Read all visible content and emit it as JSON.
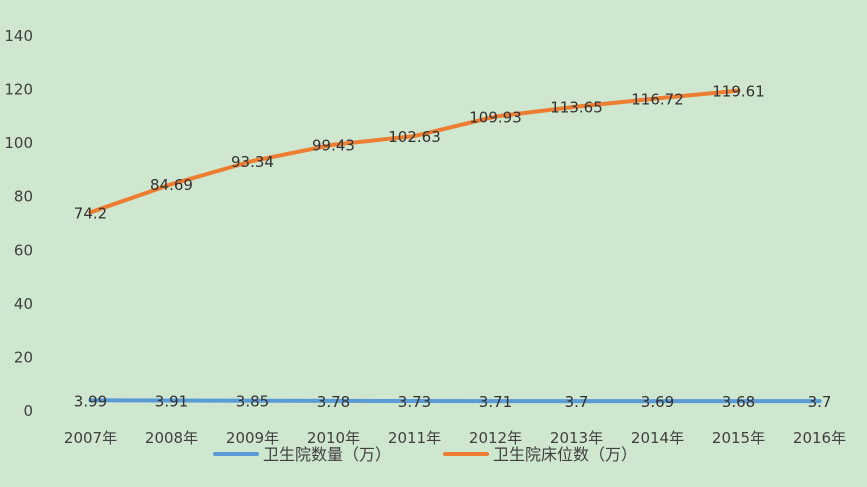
{
  "chart_data": {
    "type": "line",
    "categories": [
      "2007年",
      "2008年",
      "2009年",
      "2010年",
      "2011年",
      "2012年",
      "2013年",
      "2014年",
      "2015年",
      "2016年"
    ],
    "series": [
      {
        "name": "卫生院数量（万）",
        "color": "#5b9bd5",
        "values": [
          3.99,
          3.91,
          3.85,
          3.78,
          3.73,
          3.71,
          3.7,
          3.69,
          3.68,
          3.7
        ],
        "labels": [
          "3.99",
          "3.91",
          "3.85",
          "3.78",
          "3.73",
          "3.71",
          "3.7",
          "3.69",
          "3.68",
          "3.7"
        ]
      },
      {
        "name": "卫生院床位数（万）",
        "color": "#ed7d31",
        "values": [
          74.2,
          84.69,
          93.34,
          99.43,
          102.63,
          109.93,
          113.65,
          116.72,
          119.61,
          null
        ],
        "labels": [
          "74.2",
          "84.69",
          "93.34",
          "99.43",
          "102.63",
          "109.93",
          "113.65",
          "116.72",
          "119.61",
          ""
        ]
      }
    ],
    "ylim": [
      0,
      140
    ],
    "yticks": [
      0,
      20,
      40,
      60,
      80,
      100,
      120,
      140
    ],
    "grid": false,
    "legend": "bottom"
  }
}
